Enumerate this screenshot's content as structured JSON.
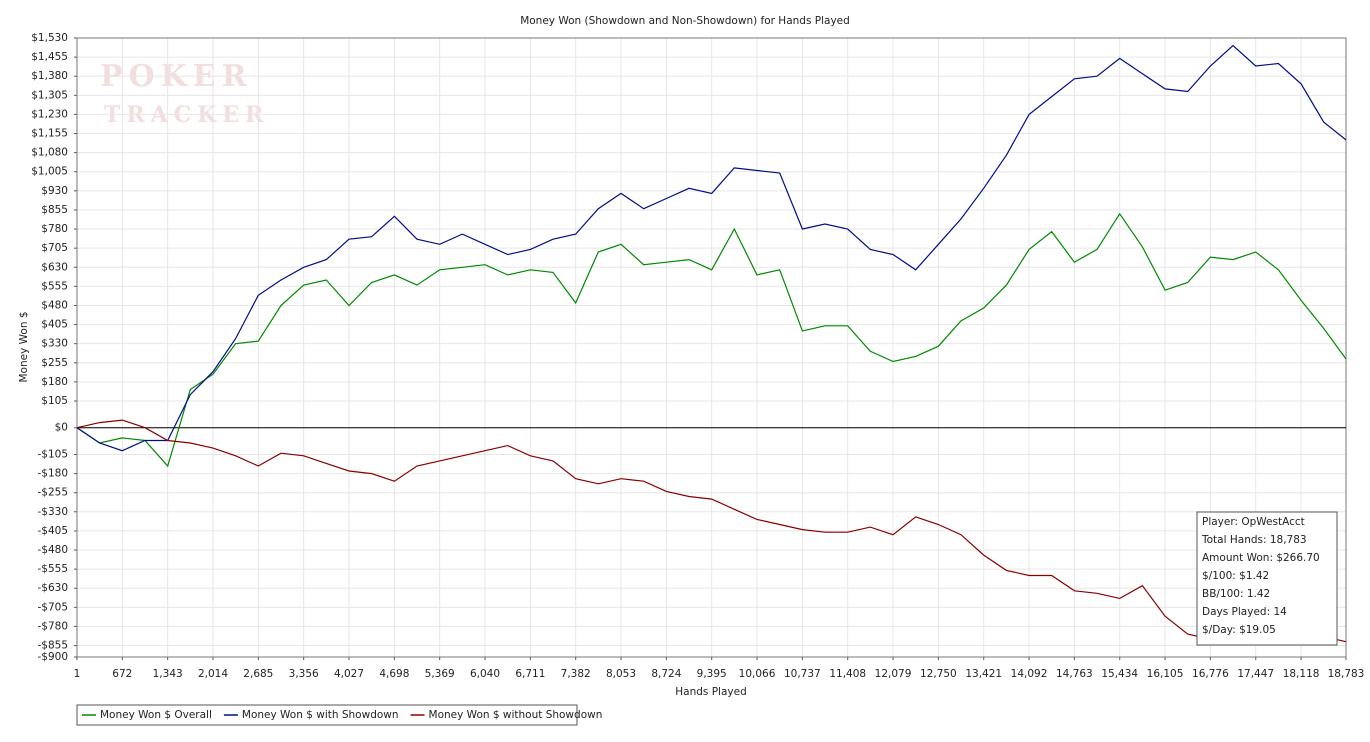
{
  "chart_data": {
    "type": "line",
    "title": "Money Won (Showdown and Non-Showdown) for Hands Played",
    "xlabel": "Hands Played",
    "ylabel": "Money Won $",
    "watermark": [
      "POKER",
      "TRACKER"
    ],
    "x": [
      1,
      336,
      672,
      1007,
      1343,
      1678,
      2014,
      2349,
      2685,
      3020,
      3356,
      3691,
      4027,
      4362,
      4698,
      5033,
      5369,
      5704,
      6040,
      6375,
      6711,
      7046,
      7382,
      7717,
      8053,
      8388,
      8724,
      9059,
      9395,
      9730,
      10066,
      10401,
      10737,
      11072,
      11408,
      11743,
      12079,
      12414,
      12750,
      13085,
      13421,
      13756,
      14092,
      14427,
      14763,
      15098,
      15434,
      15769,
      16105,
      16440,
      16776,
      17111,
      17447,
      17782,
      18118,
      18453,
      18783
    ],
    "series": [
      {
        "name": "Money Won $ Overall",
        "color": "#008a00",
        "values": [
          0,
          -60,
          -40,
          -50,
          -150,
          150,
          210,
          330,
          340,
          480,
          560,
          580,
          480,
          570,
          600,
          560,
          620,
          630,
          640,
          600,
          620,
          610,
          490,
          690,
          720,
          640,
          650,
          660,
          620,
          780,
          600,
          620,
          380,
          400,
          400,
          300,
          260,
          280,
          320,
          420,
          470,
          560,
          700,
          770,
          650,
          700,
          840,
          710,
          540,
          570,
          670,
          660,
          690,
          620,
          500,
          390,
          270
        ]
      },
      {
        "name": "Money Won $ with Showdown",
        "color": "#000d8a",
        "values": [
          0,
          -60,
          -90,
          -50,
          -50,
          130,
          220,
          350,
          520,
          580,
          630,
          660,
          740,
          750,
          830,
          740,
          720,
          760,
          720,
          680,
          700,
          740,
          760,
          860,
          920,
          860,
          900,
          940,
          920,
          1020,
          1010,
          1000,
          780,
          800,
          780,
          700,
          680,
          620,
          720,
          820,
          940,
          1070,
          1230,
          1300,
          1370,
          1380,
          1450,
          1390,
          1330,
          1320,
          1420,
          1500,
          1420,
          1430,
          1350,
          1200,
          1130
        ]
      },
      {
        "name": "Money Won $ without Showdown",
        "color": "#8a0000",
        "values": [
          0,
          20,
          30,
          0,
          -50,
          -60,
          -80,
          -110,
          -150,
          -100,
          -110,
          -140,
          -170,
          -180,
          -210,
          -150,
          -130,
          -110,
          -90,
          -70,
          -110,
          -130,
          -200,
          -220,
          -200,
          -210,
          -250,
          -270,
          -280,
          -320,
          -360,
          -380,
          -400,
          -410,
          -410,
          -390,
          -420,
          -350,
          -380,
          -420,
          -500,
          -560,
          -580,
          -580,
          -640,
          -650,
          -670,
          -620,
          -740,
          -810,
          -830,
          -840,
          -820,
          -800,
          -820,
          -820,
          -840
        ]
      }
    ],
    "xlim": [
      1,
      18783
    ],
    "xticks": [
      1,
      672,
      {
        "value": 1343,
        "label": "1,343"
      },
      {
        "value": 2014,
        "label": "2,014"
      },
      {
        "value": 2685,
        "label": "2,685"
      },
      {
        "value": 3356,
        "label": "3,356"
      },
      {
        "value": 4027,
        "label": "4,027"
      },
      {
        "value": 4698,
        "label": "4,698"
      },
      {
        "value": 5369,
        "label": "5,369"
      },
      {
        "value": 6040,
        "label": "6,040"
      },
      {
        "value": 6711,
        "label": "6,711"
      },
      {
        "value": 7382,
        "label": "7,382"
      },
      {
        "value": 8053,
        "label": "8,053"
      },
      {
        "value": 8724,
        "label": "8,724"
      },
      {
        "value": 9395,
        "label": "9,395"
      },
      {
        "value": 10066,
        "label": "10,066"
      },
      {
        "value": 10737,
        "label": "10,737"
      },
      {
        "value": 11408,
        "label": "11,408"
      },
      {
        "value": 12079,
        "label": "12,079"
      },
      {
        "value": 12750,
        "label": "12,750"
      },
      {
        "value": 13421,
        "label": "13,421"
      },
      {
        "value": 14092,
        "label": "14,092"
      },
      {
        "value": 14763,
        "label": "14,763"
      },
      {
        "value": 15434,
        "label": "15,434"
      },
      {
        "value": 16105,
        "label": "16,105"
      },
      {
        "value": 16776,
        "label": "16,776"
      },
      {
        "value": 17447,
        "label": "17,447"
      },
      {
        "value": 18118,
        "label": "18,118"
      },
      {
        "value": 18783,
        "label": "18,783"
      }
    ],
    "ylim": [
      -900,
      1530
    ],
    "yticks": [
      {
        "value": 1530,
        "label": "$1,530"
      },
      {
        "value": 1455,
        "label": "$1,455"
      },
      {
        "value": 1380,
        "label": "$1,380"
      },
      {
        "value": 1305,
        "label": "$1,305"
      },
      {
        "value": 1230,
        "label": "$1,230"
      },
      {
        "value": 1155,
        "label": "$1,155"
      },
      {
        "value": 1080,
        "label": "$1,080"
      },
      {
        "value": 1005,
        "label": "$1,005"
      },
      {
        "value": 930,
        "label": "$930"
      },
      {
        "value": 855,
        "label": "$855"
      },
      {
        "value": 780,
        "label": "$780"
      },
      {
        "value": 705,
        "label": "$705"
      },
      {
        "value": 630,
        "label": "$630"
      },
      {
        "value": 555,
        "label": "$555"
      },
      {
        "value": 480,
        "label": "$480"
      },
      {
        "value": 405,
        "label": "$405"
      },
      {
        "value": 330,
        "label": "$330"
      },
      {
        "value": 255,
        "label": "$255"
      },
      {
        "value": 180,
        "label": "$180"
      },
      {
        "value": 105,
        "label": "$105"
      },
      {
        "value": 0,
        "label": "$0"
      },
      {
        "value": -105,
        "label": "-$105"
      },
      {
        "value": -180,
        "label": "-$180"
      },
      {
        "value": -255,
        "label": "-$255"
      },
      {
        "value": -330,
        "label": "-$330"
      },
      {
        "value": -405,
        "label": "-$405"
      },
      {
        "value": -480,
        "label": "-$480"
      },
      {
        "value": -555,
        "label": "-$555"
      },
      {
        "value": -630,
        "label": "-$630"
      },
      {
        "value": -705,
        "label": "-$705"
      },
      {
        "value": -780,
        "label": "-$780"
      },
      {
        "value": -855,
        "label": "-$855"
      },
      {
        "value": -900,
        "label": "-$900"
      }
    ],
    "grid": true,
    "legend": "bottom-left",
    "info_box": [
      "Player: OpWestAcct",
      "Total Hands: 18,783",
      "Amount Won: $266.70",
      "$/100: $1.42",
      "BB/100: 1.42",
      "Days Played: 14",
      "$/Day: $19.05"
    ]
  }
}
